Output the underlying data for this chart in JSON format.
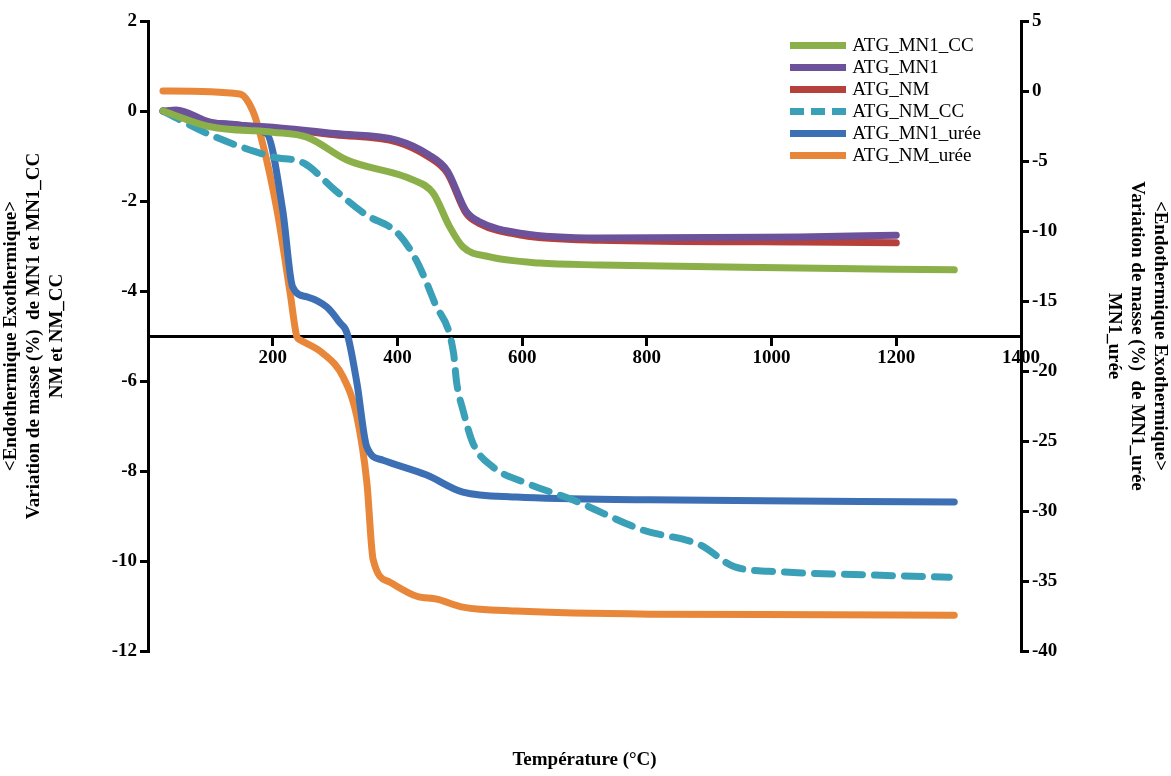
{
  "chart_data": {
    "type": "line",
    "xlabel": "Température (°C)",
    "ylabel": "<Endothermique Exothermique>\nVariation de masse (%)  de MN1 et MN1_CC\nNM et NM_CC",
    "y2label": "<Endothermique Exothermique>\nVariation de masse (%)  de MN1_urée\nMN1_urée",
    "xlim": [
      0,
      1400
    ],
    "xticks": [
      {
        "value": 0,
        "label": null
      },
      200,
      400,
      600,
      800,
      1000,
      1200,
      1400
    ],
    "ylim": [
      -12,
      2
    ],
    "yticks": [
      -12,
      -10,
      -8,
      -6,
      -4,
      -2,
      0,
      2
    ],
    "y2lim": [
      -40,
      5
    ],
    "y2ticks": [
      -40,
      -35,
      -30,
      -25,
      -20,
      -15,
      -10,
      -5,
      0,
      5
    ],
    "legend": "top right",
    "grid": false,
    "marker": "none",
    "series": [
      {
        "name": "ATG_MN1_CC",
        "color": "#8bb04a",
        "x": [
          24,
          100,
          200,
          255,
          319,
          425,
          457,
          484,
          505,
          548,
          628,
          724,
          1045,
          1293
        ],
        "values": [
          0,
          -0.35,
          -0.47,
          -0.58,
          -1.09,
          -1.53,
          -1.82,
          -2.58,
          -3.02,
          -3.24,
          -3.38,
          -3.42,
          -3.49,
          -3.53
        ]
      },
      {
        "name": "ATG_MN1",
        "color": "#6c519b",
        "x": [
          24,
          45,
          100,
          200,
          300,
          400,
          450,
          480,
          510,
          530,
          600,
          724,
          1045,
          1200
        ],
        "values": [
          0,
          0.02,
          -0.25,
          -0.36,
          -0.5,
          -0.65,
          -0.97,
          -1.33,
          -2.22,
          -2.45,
          -2.72,
          -2.82,
          -2.8,
          -2.76
        ]
      },
      {
        "name": "ATG_NM",
        "color": "#b6403c",
        "x": [
          100,
          200,
          300,
          400,
          450,
          480,
          510,
          530,
          600,
          724,
          1045,
          1200
        ],
        "values": [
          -0.27,
          -0.38,
          -0.53,
          -0.69,
          -1.02,
          -1.38,
          -2.27,
          -2.49,
          -2.76,
          -2.87,
          -2.91,
          -2.93
        ]
      },
      {
        "name": "ATG_NM_CC",
        "color": "#3aa0b8",
        "line_style": "dashed",
        "x": [
          24,
          100,
          200,
          250,
          300,
          350,
          400,
          430,
          460,
          490,
          495,
          505,
          521,
          553,
          607,
          681,
          793,
          885,
          941,
          1013,
          1157,
          1285
        ],
        "values": [
          0,
          -0.53,
          -1.02,
          -1.16,
          -1.76,
          -2.31,
          -2.71,
          -3.31,
          -4.27,
          -5.38,
          -6.04,
          -6.64,
          -7.38,
          -7.91,
          -8.27,
          -8.64,
          -9.31,
          -9.64,
          -10.13,
          -10.24,
          -10.31,
          -10.36
        ]
      },
      {
        "name": "ATG_MN1_urée",
        "color": "#3d6fb5",
        "x": [
          24,
          100,
          190,
          216,
          232,
          255,
          287,
          308,
          319,
          335,
          351,
          377,
          447,
          505,
          591,
          804,
          1293
        ],
        "values": [
          0,
          -0.27,
          -0.5,
          -2.2,
          -3.91,
          -4.13,
          -4.36,
          -4.71,
          -4.93,
          -6.04,
          -7.47,
          -7.76,
          -8.09,
          -8.47,
          -8.58,
          -8.64,
          -8.69
        ]
      },
      {
        "name": "ATG_NM_urée",
        "color": "#e8873a",
        "axis": "y2",
        "x": [
          24,
          147,
          168,
          184,
          207,
          228,
          239,
          244,
          280,
          313,
          335,
          351,
          361,
          388,
          431,
          463,
          505,
          591,
          804,
          1293
        ],
        "values": [
          0,
          -0.21,
          -1.42,
          -3.77,
          -8.54,
          -14.45,
          -17.58,
          -17.79,
          -18.72,
          -20.43,
          -23.27,
          -27.97,
          -33.45,
          -35.09,
          -36.09,
          -36.3,
          -36.87,
          -37.15,
          -37.37,
          -37.44
        ]
      }
    ]
  }
}
